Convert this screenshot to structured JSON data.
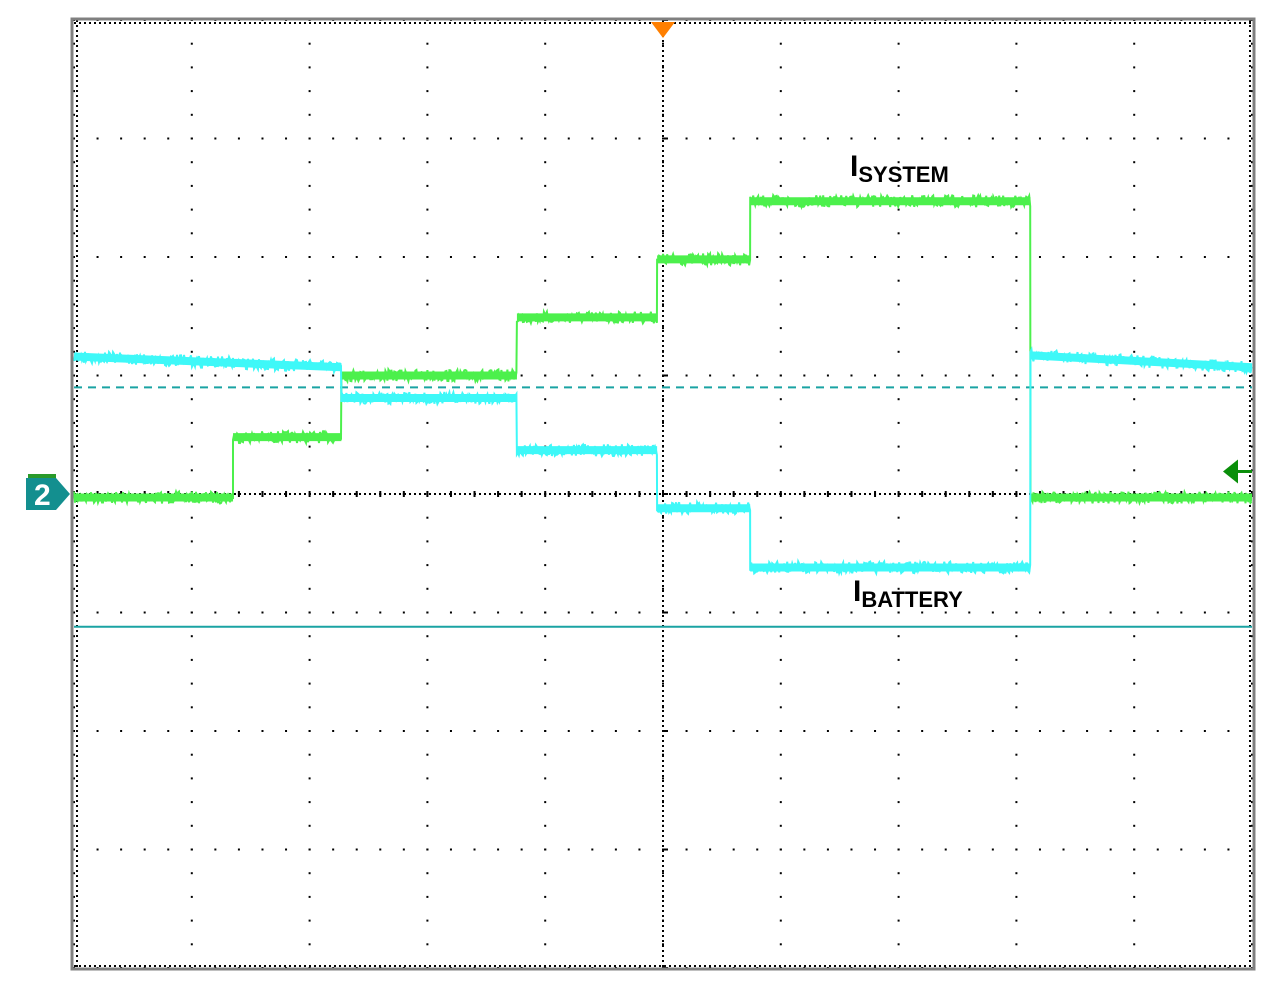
{
  "chart_data": {
    "type": "line",
    "title": "",
    "xlabel": "",
    "ylabel": "",
    "xlim": [
      0,
      10
    ],
    "ylim": [
      -4,
      4
    ],
    "grid": true,
    "grid_style": "dotted oscilloscope graticule, 10 x 8 divisions",
    "channel_marker": "2",
    "colors": {
      "system": "#4cf04c",
      "battery": "#3ef8f8",
      "reference": "#1aa3a3",
      "trigger": "#ff7f00",
      "marker": "#138f8f",
      "arrow": "#0a8f0a",
      "frame": "#808080"
    },
    "reference_levels": {
      "dashed": 0.9,
      "solid": -1.12,
      "right_arrow": 0.19
    },
    "annotations": [
      {
        "text_main": "I",
        "text_sub": "SYSTEM"
      },
      {
        "text_main": "I",
        "text_sub": "BATTERY"
      }
    ],
    "series": [
      {
        "name": "ISYSTEM",
        "segments": [
          {
            "x0": 0,
            "x1": 1.35,
            "y0": -0.03,
            "y1": -0.03
          },
          {
            "x0": 1.35,
            "x1": 2.27,
            "y0": 0.48,
            "y1": 0.48
          },
          {
            "x0": 2.27,
            "x1": 3.76,
            "y0": 1.0,
            "y1": 1.0
          },
          {
            "x0": 3.76,
            "x1": 4.95,
            "y0": 1.49,
            "y1": 1.49
          },
          {
            "x0": 4.95,
            "x1": 5.74,
            "y0": 1.98,
            "y1": 1.98
          },
          {
            "x0": 5.74,
            "x1": 8.12,
            "y0": 2.47,
            "y1": 2.47
          },
          {
            "x0": 8.12,
            "x1": 10,
            "y0": -0.03,
            "y1": -0.03
          }
        ]
      },
      {
        "name": "IBATTERY",
        "segments": [
          {
            "x0": 0,
            "x1": 2.27,
            "y0": 1.16,
            "y1": 1.07
          },
          {
            "x0": 2.27,
            "x1": 3.76,
            "y0": 0.81,
            "y1": 0.81
          },
          {
            "x0": 3.76,
            "x1": 4.95,
            "y0": 0.37,
            "y1": 0.37
          },
          {
            "x0": 4.95,
            "x1": 5.74,
            "y0": -0.12,
            "y1": -0.12
          },
          {
            "x0": 5.74,
            "x1": 8.12,
            "y0": -0.62,
            "y1": -0.62
          },
          {
            "x0": 8.12,
            "x1": 10,
            "y0": 1.17,
            "y1": 1.07
          }
        ]
      }
    ]
  }
}
